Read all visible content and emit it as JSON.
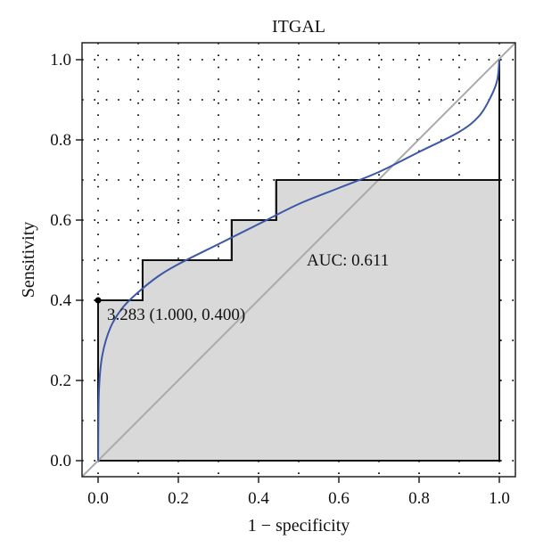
{
  "chart_data": {
    "type": "line",
    "title": "ITGAL",
    "xlabel": "1 − specificity",
    "ylabel": "Sensitivity",
    "xlim": [
      0,
      1
    ],
    "ylim": [
      0,
      1
    ],
    "x_ticks": [
      "0.0",
      "0.2",
      "0.4",
      "0.6",
      "0.8",
      "1.0"
    ],
    "y_ticks": [
      "0.0",
      "0.2",
      "0.4",
      "0.6",
      "0.8",
      "1.0"
    ],
    "grid": "dotted",
    "empirical_roc": {
      "x": [
        0,
        0,
        0.111,
        0.111,
        0.333,
        0.333,
        0.444,
        0.444,
        1.0,
        1.0
      ],
      "y": [
        0,
        0.4,
        0.4,
        0.5,
        0.5,
        0.6,
        0.6,
        0.7,
        0.7,
        1.0
      ],
      "fill": "#d9d9d9",
      "stroke": "#111111"
    },
    "smooth_roc": {
      "x": [
        0,
        0.002,
        0.01,
        0.03,
        0.06,
        0.1,
        0.15,
        0.2,
        0.3,
        0.4,
        0.5,
        0.6,
        0.7,
        0.8,
        0.9,
        0.95,
        0.98,
        0.995,
        1.0
      ],
      "y": [
        0,
        0.17,
        0.26,
        0.33,
        0.38,
        0.42,
        0.46,
        0.49,
        0.54,
        0.59,
        0.64,
        0.68,
        0.72,
        0.77,
        0.82,
        0.86,
        0.91,
        0.95,
        1.0
      ],
      "color": "#3b57a6"
    },
    "diagonal_color": "#aaaaaa",
    "auc_label": "AUC: 0.611",
    "threshold_point": {
      "x": 0,
      "y": 0.4,
      "label": "3.283 (1.000, 0.400)"
    }
  }
}
